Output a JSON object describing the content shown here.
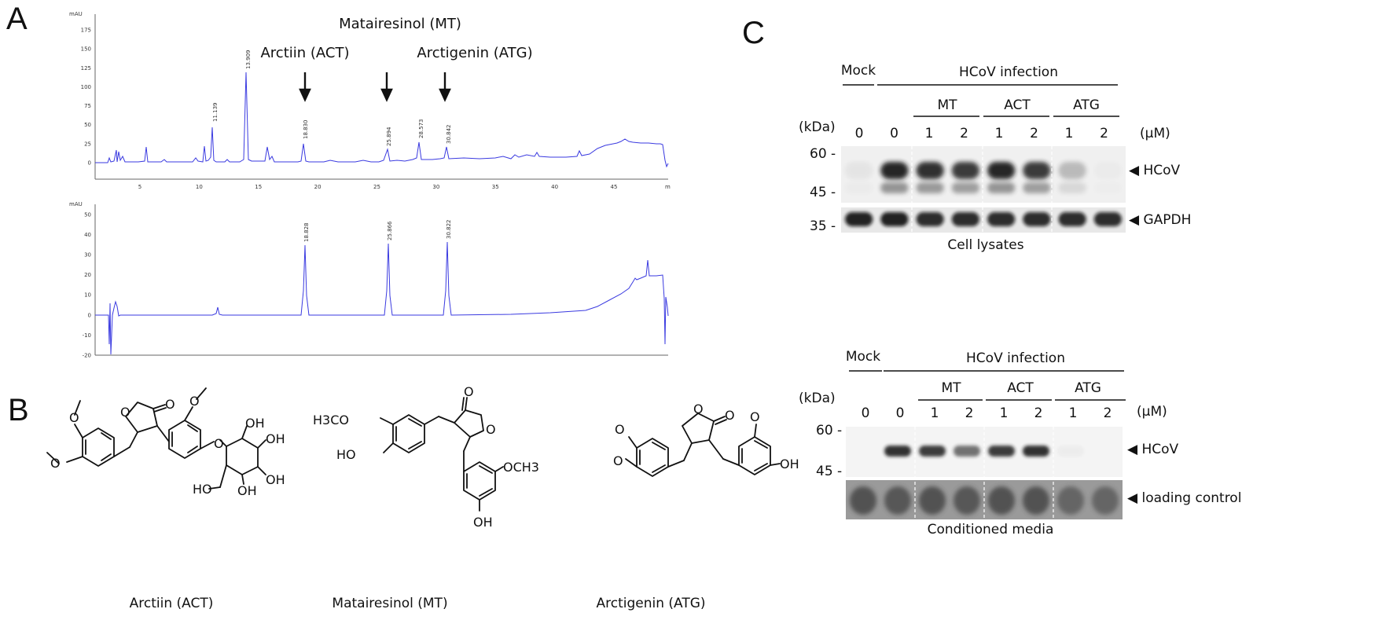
{
  "panels": {
    "a": "A",
    "b": "B",
    "c": "C"
  },
  "panel_a": {
    "top": {
      "unit": "mAU",
      "y_ticks": [
        "0",
        "25",
        "50",
        "75",
        "100",
        "125",
        "150",
        "175"
      ],
      "x_ticks": [
        "5",
        "10",
        "15",
        "20",
        "25",
        "30",
        "35",
        "40",
        "45"
      ],
      "x_unit": "m",
      "peak_labels": [
        "11.139",
        "13.909",
        "18.830",
        "25.894",
        "28.573",
        "30.842"
      ],
      "annot_mt": "Matairesinol (MT)",
      "annot_act": "Arctiin (ACT)",
      "annot_atg": "Arctigenin (ATG)"
    },
    "bottom": {
      "unit": "mAU",
      "y_ticks": [
        "-20",
        "-10",
        "0",
        "10",
        "20",
        "30",
        "40",
        "50"
      ],
      "peak_labels": [
        "18.828",
        "25.866",
        "30.822"
      ]
    }
  },
  "panel_b": {
    "compounds": [
      {
        "name": "Arctiin (ACT)",
        "atoms": [
          "O",
          "O",
          "O",
          "O",
          "O",
          "OH",
          "OH",
          "OH",
          "HO",
          "OH"
        ]
      },
      {
        "name": "Matairesinol (MT)",
        "atoms": [
          "O",
          "O",
          "H3CO",
          "HO",
          "OCH3",
          "OH"
        ]
      },
      {
        "name": "Arctigenin (ATG)",
        "atoms": [
          "O",
          "O",
          "O",
          "O",
          "OH"
        ]
      }
    ]
  },
  "panel_c": {
    "top": {
      "mock": "Mock",
      "infection": "HCoV infection",
      "groups": [
        "MT",
        "ACT",
        "ATG"
      ],
      "kda": "(kDa)",
      "doses": [
        "0",
        "0",
        "1",
        "2",
        "1",
        "2",
        "1",
        "2"
      ],
      "unit": "(μM)",
      "markers": [
        "60 -",
        "45 -",
        "35 -"
      ],
      "bands": [
        "◀ HCoV",
        "◀ GAPDH"
      ],
      "caption": "Cell lysates",
      "hcov_intensity": [
        0.05,
        0.95,
        0.9,
        0.85,
        0.95,
        0.85,
        0.25,
        0.02
      ],
      "gapdh_intensity": [
        0.9,
        0.9,
        0.85,
        0.85,
        0.85,
        0.85,
        0.85,
        0.85
      ]
    },
    "bottom": {
      "mock": "Mock",
      "infection": "HCoV infection",
      "groups": [
        "MT",
        "ACT",
        "ATG"
      ],
      "kda": "(kDa)",
      "doses": [
        "0",
        "0",
        "1",
        "2",
        "1",
        "2",
        "1",
        "2"
      ],
      "unit": "(μM)",
      "markers": [
        "60 -",
        "45 -"
      ],
      "bands": [
        "◀ HCoV",
        "◀ loading control"
      ],
      "caption": "Conditioned media",
      "hcov_intensity": [
        0.0,
        0.9,
        0.85,
        0.6,
        0.85,
        0.9,
        0.03,
        0.0
      ],
      "loading_intensity": [
        0.75,
        0.7,
        0.75,
        0.7,
        0.75,
        0.75,
        0.55,
        0.55
      ]
    }
  },
  "colors": {
    "trace": "#3a3ae0",
    "text": "#111111",
    "blot_band": "#202020"
  }
}
